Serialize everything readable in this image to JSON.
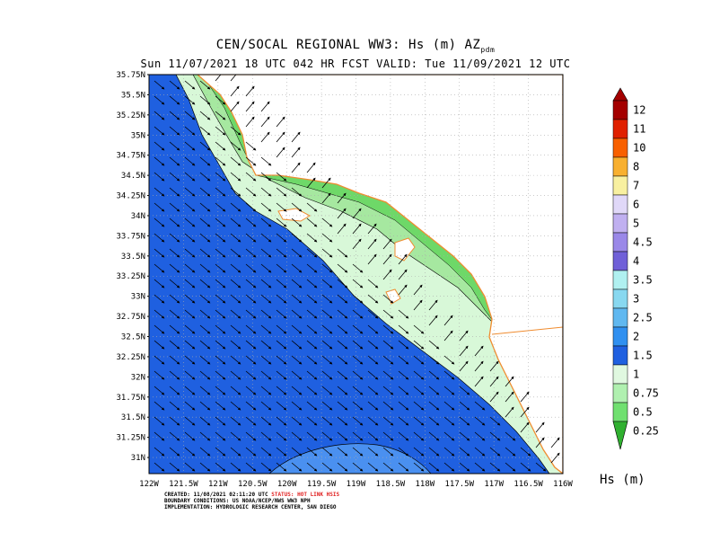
{
  "header": {
    "title_line1": "CEN/SOCAL REGIONAL WW3: Hs (m) AZ",
    "title_sub": "pdm",
    "title_line2": "Sun 11/07/2021 18 UTC 042 HR FCST     VALID: Tue 11/09/2021 12 UTC"
  },
  "map": {
    "lat_labels": [
      "35.75N",
      "35.5N",
      "35.25N",
      "35N",
      "34.75N",
      "34.5N",
      "34.25N",
      "34N",
      "33.75N",
      "33.5N",
      "33.25N",
      "33N",
      "32.75N",
      "32.5N",
      "32.25N",
      "32N",
      "31.75N",
      "31.5N",
      "31.25N",
      "31N"
    ],
    "lon_labels": [
      "122W",
      "121.5W",
      "121W",
      "120.5W",
      "120W",
      "119.5W",
      "119W",
      "118.5W",
      "118W",
      "117.5W",
      "117W",
      "116.5W",
      "116W"
    ],
    "lat_range": [
      30.8,
      35.75
    ],
    "lon_range": [
      -122,
      -116
    ],
    "grid": true,
    "colors": {
      "ocean_deep": "#1f60e0",
      "ocean_mid": "#4a90f0",
      "hs_1": "#d8f8d8",
      "hs_075": "#a6e8a0",
      "hs_05": "#6ed868",
      "coast": "#f08c30",
      "grid": "#aaaaaa"
    }
  },
  "colorbar": {
    "labels": [
      "12",
      "11",
      "10",
      "8",
      "7",
      "6",
      "5",
      "4.5",
      "4",
      "3.5",
      "3",
      "2.5",
      "2",
      "1.5",
      "1",
      "0.75",
      "0.5",
      "0.25"
    ],
    "colors": [
      "#a40000",
      "#e02000",
      "#f86000",
      "#f8b030",
      "#f8f0a0",
      "#e0d8f8",
      "#c0b0f0",
      "#9a88e8",
      "#7060d8",
      "#b0f0f0",
      "#88d8f0",
      "#60b8f0",
      "#3090f0",
      "#2060e0",
      "#e0f8e0",
      "#b0f0b0",
      "#70e070",
      "#30b030"
    ],
    "unit_label": "Hs (m)"
  },
  "credits": {
    "created_prefix": "CREATED: 11/08/2021 02:11:20 UTC",
    "status": "STATUS: HOT LINK HSIS",
    "boundary": "BOUNDARY CONDITIONS: US NOAA/NCEP/NWS WW3 NPH",
    "implementation": "IMPLEMENTATION: HYDROLOGIC RESEARCH CENTER, SAN DIEGO"
  }
}
